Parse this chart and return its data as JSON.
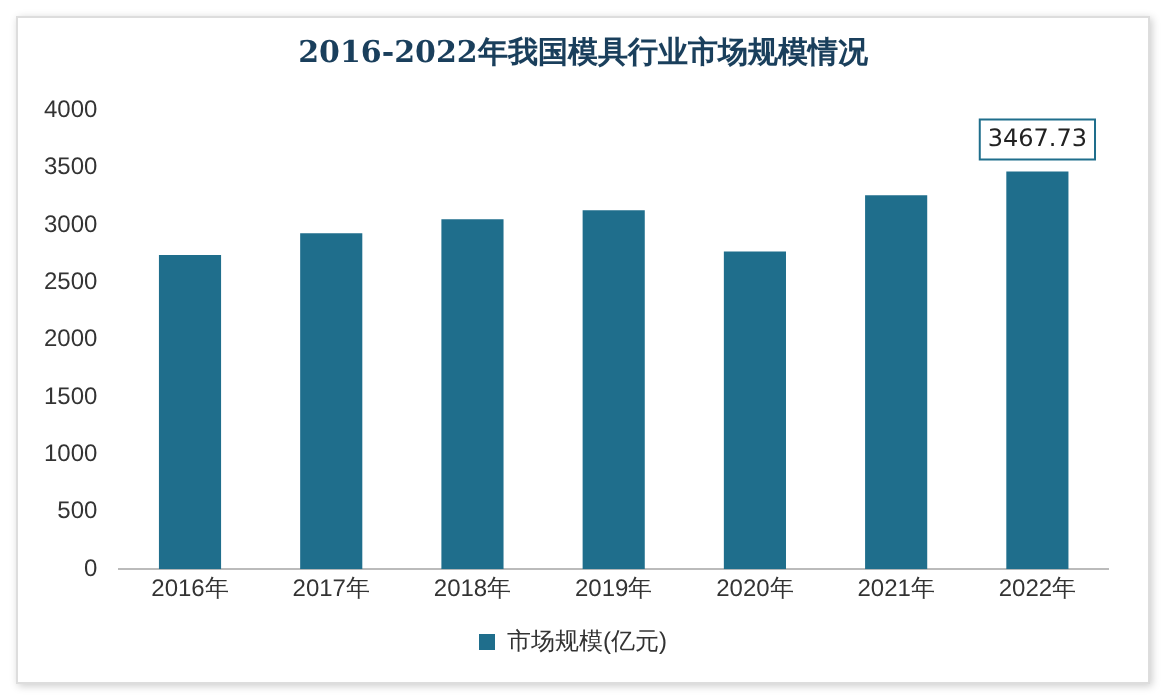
{
  "chart_data": {
    "type": "bar",
    "title": "2016-2022年我国模具行业市场规模情况",
    "categories": [
      "2016年",
      "2017年",
      "2018年",
      "2019年",
      "2020年",
      "2021年",
      "2022年"
    ],
    "series": [
      {
        "name": "市场规模(亿元)",
        "color": "#1f6e8c",
        "values": [
          2740,
          2930,
          3050,
          3130,
          2770,
          3260,
          3467.73
        ],
        "value_labels": [
          null,
          null,
          null,
          null,
          null,
          null,
          "3467.73"
        ]
      }
    ],
    "ylim": [
      0,
      4000
    ],
    "yticks": [
      0,
      500,
      1000,
      1500,
      2000,
      2500,
      3000,
      3500,
      4000
    ],
    "grid": false,
    "legend": "bottom"
  }
}
